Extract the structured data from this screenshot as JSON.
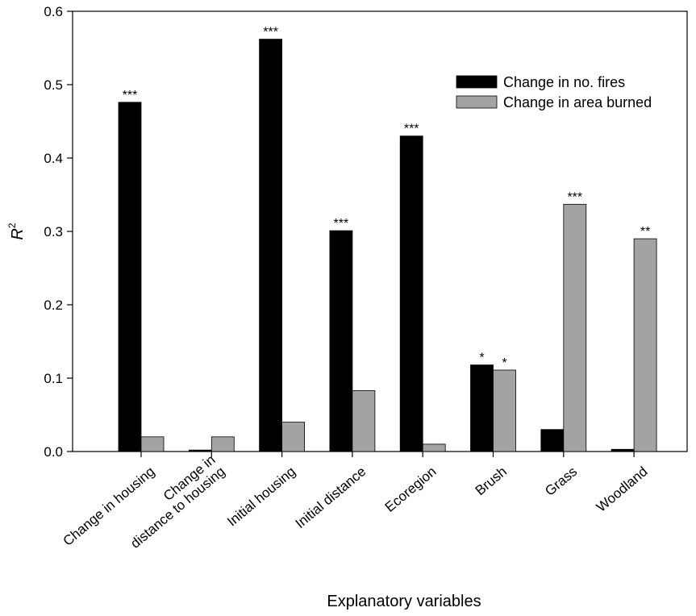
{
  "chart_data": {
    "type": "bar",
    "title": "",
    "xlabel": "Explanatory variables",
    "ylabel_main": "R",
    "ylabel_sup": "2",
    "ylim": [
      0,
      0.6
    ],
    "yticks": [
      "0.0",
      "0.1",
      "0.2",
      "0.3",
      "0.4",
      "0.5",
      "0.6"
    ],
    "yticks_values": [
      0,
      0.1,
      0.2,
      0.3,
      0.4,
      0.5,
      0.6
    ],
    "categories": [
      [
        "Change in housing"
      ],
      [
        "Change in",
        "distance to housing"
      ],
      [
        "Initial housing"
      ],
      [
        "Initial distance"
      ],
      [
        "Ecoregion"
      ],
      [
        "Brush"
      ],
      [
        "Grass"
      ],
      [
        "Woodland"
      ]
    ],
    "series": [
      {
        "name": "Change in no. fires",
        "color": "#000000",
        "values": [
          0.476,
          0.002,
          0.562,
          0.301,
          0.43,
          0.118,
          0.03,
          0.003
        ],
        "significance": [
          "***",
          "",
          "***",
          "***",
          "***",
          "*",
          "",
          ""
        ]
      },
      {
        "name": "Change in area burned",
        "color": "#a3a3a3",
        "values": [
          0.02,
          0.02,
          0.04,
          0.083,
          0.01,
          0.111,
          0.337,
          0.29
        ],
        "significance": [
          "",
          "",
          "",
          "",
          "",
          "*",
          "***",
          "**"
        ]
      }
    ],
    "legend_position": "top-right",
    "grid": false
  }
}
